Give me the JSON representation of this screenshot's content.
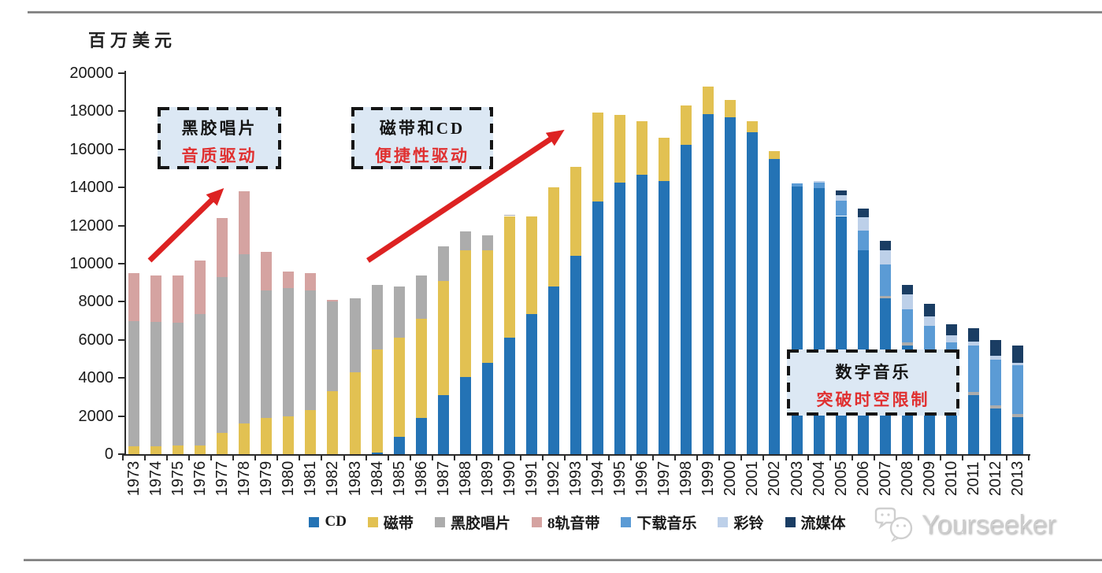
{
  "page": {
    "unit_label": "百万美元",
    "watermark_text": "Yourseeker"
  },
  "annotations": {
    "vinyl": {
      "line1": "黑胶唱片",
      "line2": "音质驱动"
    },
    "cassette_cd": {
      "line1": "磁带和CD",
      "line2": "便捷性驱动"
    },
    "digital": {
      "line1": "数字音乐",
      "line2": "突破时空限制"
    }
  },
  "colors": {
    "arrow_red": "#DD2222",
    "annotation_fill": "#DCE8F4",
    "annotation_red_text": "#E03030",
    "axis": "#2B2B2B"
  },
  "chart_data": {
    "type": "bar",
    "stacked": true,
    "title": "",
    "ylabel_unit": "百万美元",
    "ylim": [
      0,
      20000
    ],
    "ytick_step": 2000,
    "grid": false,
    "legend_position": "bottom",
    "categories": [
      "1973",
      "1974",
      "1975",
      "1976",
      "1977",
      "1978",
      "1979",
      "1980",
      "1981",
      "1982",
      "1983",
      "1984",
      "1985",
      "1986",
      "1987",
      "1988",
      "1989",
      "1990",
      "1991",
      "1992",
      "1993",
      "1994",
      "1995",
      "1996",
      "1997",
      "1998",
      "1999",
      "2000",
      "2001",
      "2002",
      "2003",
      "2004",
      "2005",
      "2006",
      "2007",
      "2008",
      "2009",
      "2010",
      "2011",
      "2012",
      "2013"
    ],
    "series": [
      {
        "name": "CD",
        "color": "#2473B5",
        "values": [
          0,
          0,
          0,
          0,
          0,
          0,
          0,
          0,
          0,
          0,
          0,
          100,
          900,
          1900,
          3100,
          4050,
          4800,
          6100,
          7350,
          8800,
          10400,
          13250,
          14250,
          14650,
          14350,
          16250,
          17850,
          17700,
          16900,
          15500,
          14050,
          13950,
          12500,
          10700,
          8200,
          5700,
          5100,
          3600,
          3100,
          2400,
          1950
        ]
      },
      {
        "name": "磁带",
        "color": "#E2C152",
        "values": [
          400,
          400,
          450,
          450,
          1100,
          1600,
          1900,
          2000,
          2300,
          3300,
          4300,
          5400,
          5200,
          5200,
          6000,
          6650,
          5900,
          6400,
          5150,
          5200,
          4700,
          4700,
          3550,
          2850,
          2250,
          2050,
          1450,
          900,
          600,
          400,
          0,
          0,
          0,
          0,
          0,
          0,
          0,
          0,
          0,
          0,
          0
        ]
      },
      {
        "name": "黑胶唱片",
        "color": "#ACACAC",
        "values": [
          6600,
          6550,
          6450,
          6900,
          8200,
          8900,
          6700,
          6700,
          6300,
          4700,
          3900,
          3400,
          2700,
          2300,
          1800,
          1000,
          800,
          50,
          0,
          0,
          0,
          0,
          0,
          0,
          0,
          0,
          0,
          0,
          0,
          0,
          0,
          0,
          0,
          0,
          100,
          150,
          150,
          150,
          150,
          150,
          150
        ]
      },
      {
        "name": "8轨音带",
        "color": "#D5A3A1",
        "values": [
          2500,
          2450,
          2500,
          2800,
          3100,
          3300,
          2000,
          900,
          900,
          100,
          0,
          0,
          0,
          0,
          0,
          0,
          0,
          0,
          0,
          0,
          0,
          0,
          0,
          0,
          0,
          0,
          0,
          0,
          0,
          0,
          0,
          0,
          0,
          0,
          0,
          0,
          0,
          0,
          0,
          0,
          0
        ]
      },
      {
        "name": "下载音乐",
        "color": "#5B9BD5",
        "values": [
          0,
          0,
          0,
          0,
          0,
          0,
          0,
          0,
          0,
          0,
          0,
          0,
          0,
          0,
          0,
          0,
          0,
          0,
          0,
          0,
          0,
          0,
          0,
          0,
          0,
          0,
          0,
          0,
          0,
          0,
          150,
          300,
          800,
          1050,
          1650,
          1750,
          1500,
          2100,
          2450,
          2400,
          2550
        ]
      },
      {
        "name": "彩铃",
        "color": "#BDD0E9",
        "values": [
          0,
          0,
          0,
          0,
          0,
          0,
          0,
          0,
          0,
          0,
          0,
          0,
          0,
          0,
          0,
          0,
          0,
          0,
          0,
          0,
          0,
          0,
          0,
          0,
          0,
          0,
          0,
          0,
          0,
          0,
          0,
          100,
          300,
          700,
          750,
          800,
          500,
          400,
          200,
          200,
          150
        ]
      },
      {
        "name": "流媒体",
        "color": "#1A3D63",
        "values": [
          0,
          0,
          0,
          0,
          0,
          0,
          0,
          0,
          0,
          0,
          0,
          0,
          0,
          0,
          0,
          0,
          0,
          0,
          0,
          0,
          0,
          0,
          0,
          0,
          0,
          0,
          0,
          0,
          0,
          0,
          0,
          0,
          250,
          450,
          500,
          500,
          650,
          550,
          700,
          850,
          900
        ]
      }
    ]
  }
}
